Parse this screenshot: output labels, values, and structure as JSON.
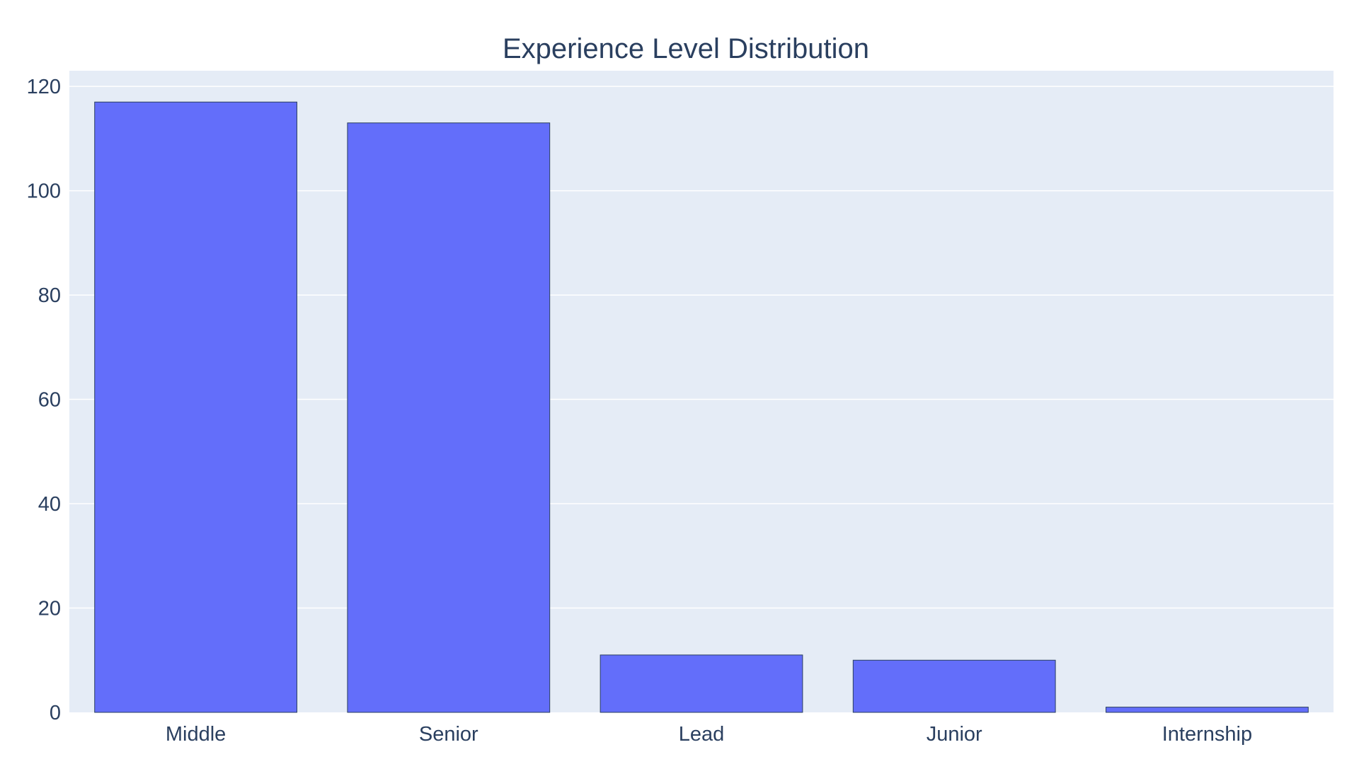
{
  "chart_data": {
    "type": "bar",
    "title": "Experience Level Distribution",
    "xlabel": "",
    "ylabel": "",
    "categories": [
      "Middle",
      "Senior",
      "Lead",
      "Junior",
      "Internship"
    ],
    "values": [
      117,
      113,
      11,
      10,
      1
    ],
    "ylim": [
      0,
      123
    ],
    "yticks": [
      0,
      20,
      40,
      60,
      80,
      100,
      120
    ],
    "grid": true,
    "legend": "none",
    "colors": {
      "bar": "#636efa",
      "bar_outline": "#2a3f5f",
      "plot_bg": "#e5ecf6",
      "grid": "#ffffff",
      "text": "#2a3f5f"
    }
  }
}
